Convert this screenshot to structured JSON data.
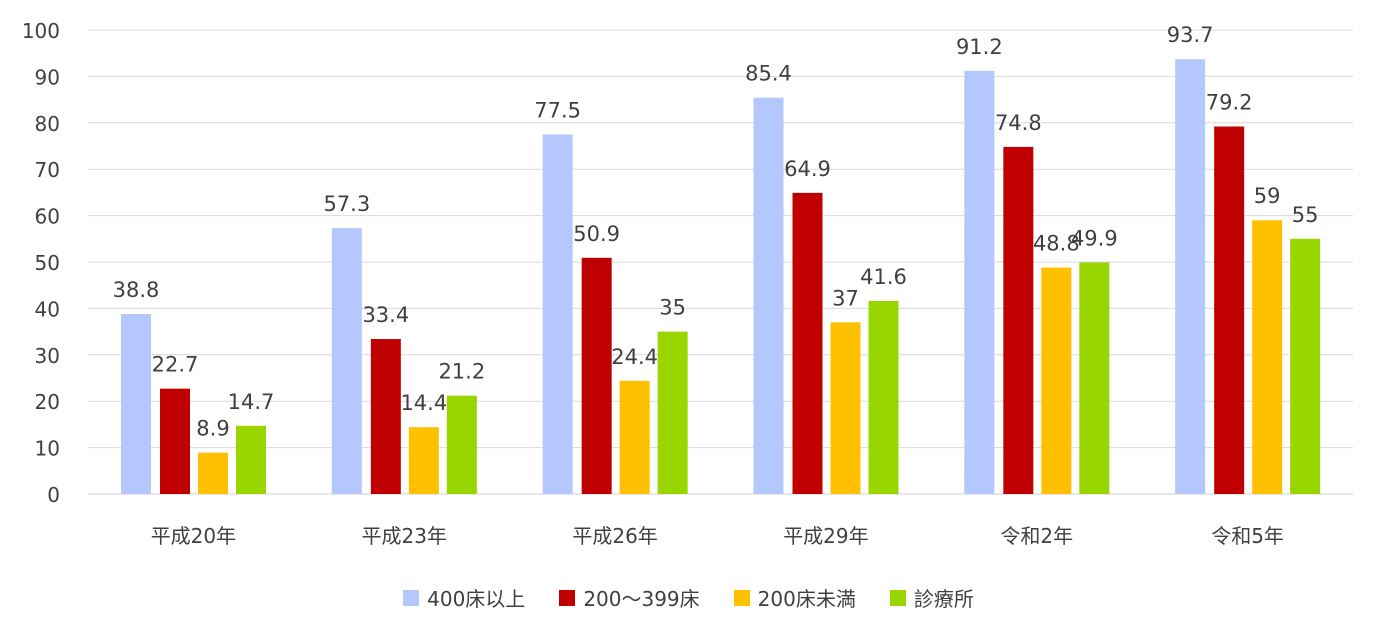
{
  "chart_data": {
    "type": "bar",
    "title": "",
    "xlabel": "",
    "ylabel": "",
    "ylim": [
      0,
      100
    ],
    "yticks": [
      0,
      10,
      20,
      30,
      40,
      50,
      60,
      70,
      80,
      90,
      100
    ],
    "grid": true,
    "legend_position": "bottom",
    "categories": [
      "平成20年",
      "平成23年",
      "平成26年",
      "平成29年",
      "令和2年",
      "令和5年"
    ],
    "series": [
      {
        "name": "400床以上",
        "color": "#B4C7FF",
        "values": [
          38.8,
          57.3,
          77.5,
          85.4,
          91.2,
          93.7
        ]
      },
      {
        "name": "200～399床",
        "color": "#C00000",
        "values": [
          22.7,
          33.4,
          50.9,
          64.9,
          74.8,
          79.2
        ]
      },
      {
        "name": "200床未満",
        "color": "#FFC000",
        "values": [
          8.9,
          14.4,
          24.4,
          37,
          48.8,
          59
        ]
      },
      {
        "name": "診療所",
        "color": "#99D600",
        "values": [
          14.7,
          21.2,
          35,
          41.6,
          49.9,
          55
        ]
      }
    ]
  }
}
